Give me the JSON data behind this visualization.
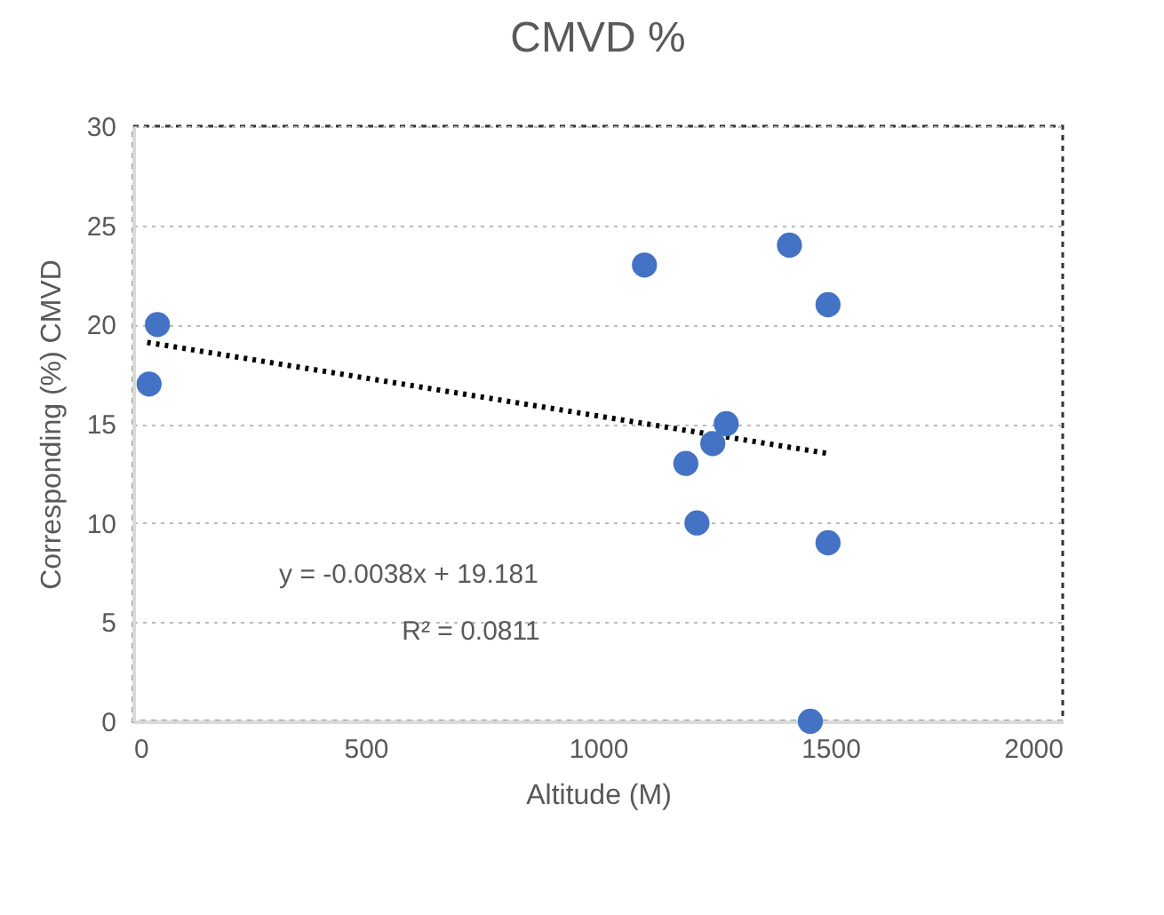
{
  "chart_data": {
    "type": "scatter",
    "title": "CMVD %",
    "xlabel": "Altitude (M)",
    "ylabel": "Corresponding (%) CMVD",
    "annotations": [
      "y = -0.0038x + 19.181",
      "R² = 0.0811"
    ],
    "xlim": [
      0,
      2000
    ],
    "xticks": [
      0,
      500,
      1000,
      1500,
      2000
    ],
    "ylim": [
      0,
      30
    ],
    "yticks": [
      0,
      5,
      10,
      15,
      20,
      25,
      30
    ],
    "grid": "y",
    "series": [
      {
        "marker": "circle",
        "color": "#4472c4",
        "x": [
          34,
          52,
          1100,
          1412,
          1495,
          1276,
          1247,
          1189,
          1213,
          1495,
          1457
        ],
        "values": [
          17,
          20,
          23,
          24,
          21,
          15,
          14,
          13,
          10,
          9,
          0
        ]
      },
      {
        "type": "line",
        "color": "#000000",
        "line_style": "dotted",
        "x": [
          30,
          1495
        ],
        "values": [
          19.1,
          13.5
        ]
      }
    ]
  }
}
